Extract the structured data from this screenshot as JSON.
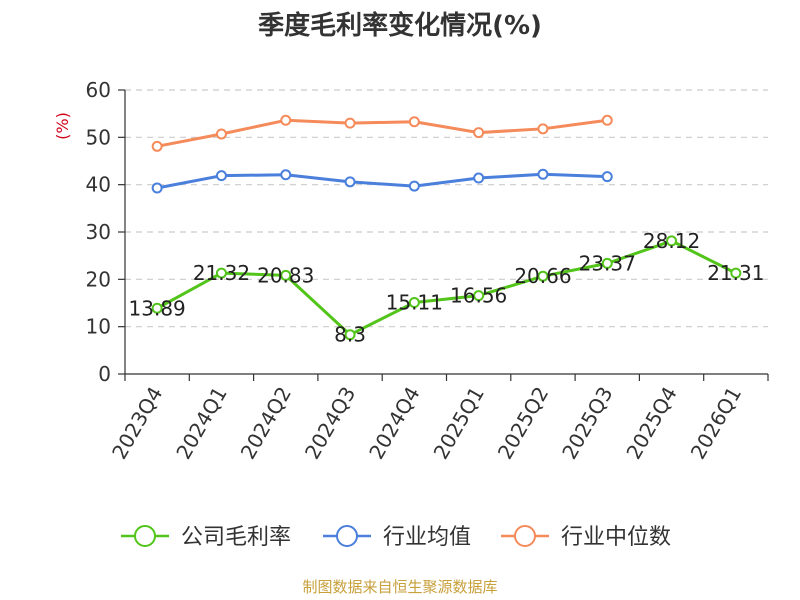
{
  "chart_data": {
    "type": "line",
    "title": "季度毛利率变化情况(%)",
    "ylabel": "(%)",
    "xlabel": "",
    "ylim": [
      0,
      60
    ],
    "yticks": [
      0,
      10,
      20,
      30,
      40,
      50,
      60
    ],
    "grid": true,
    "legend_position": "bottom",
    "categories": [
      "2023Q4",
      "2024Q1",
      "2024Q2",
      "2024Q3",
      "2024Q4",
      "2025Q1",
      "2025Q2",
      "2025Q3",
      "2025Q4",
      "2026Q1"
    ],
    "series": [
      {
        "name": "公司毛利率",
        "color": "#52c41a",
        "values": [
          13.89,
          21.32,
          20.83,
          8.3,
          15.11,
          16.56,
          20.66,
          23.37,
          28.12,
          21.31
        ],
        "labels": [
          "13.89",
          "21.32",
          "20.83",
          "8.3",
          "15.11",
          "16.56",
          "20.66",
          "23.37",
          "28.12",
          "21.31"
        ]
      },
      {
        "name": "行业均值",
        "color": "#4a7fdc",
        "values": [
          39.3,
          41.9,
          42.1,
          40.6,
          39.7,
          41.4,
          42.2,
          41.7,
          null,
          null
        ]
      },
      {
        "name": "行业中位数",
        "color": "#f58a5a",
        "values": [
          48.1,
          50.7,
          53.6,
          53.0,
          53.3,
          51.0,
          51.8,
          53.6,
          null,
          null
        ]
      }
    ]
  },
  "source": "制图数据来自恒生聚源数据库"
}
